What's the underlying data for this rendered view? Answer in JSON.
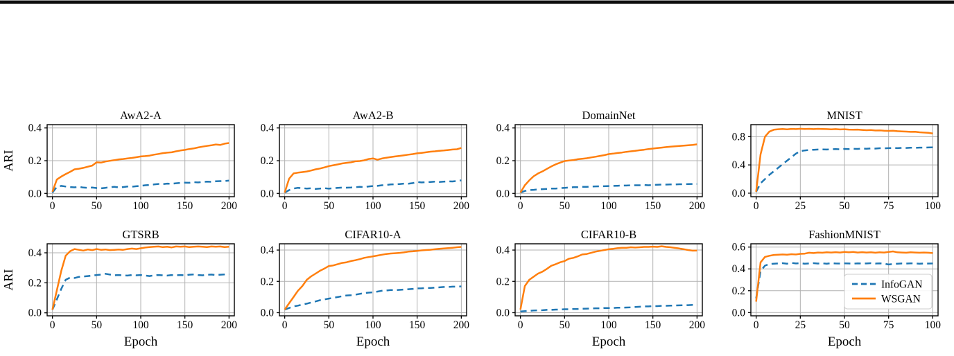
{
  "figure": {
    "rows": 2,
    "cols": 4,
    "ylabel": "ARI",
    "xlabel": "Epoch",
    "colors": {
      "infogan": "#1f77b4",
      "wsgan": "#ff7f0e",
      "grid": "#b0b0b0",
      "axis": "#000000"
    },
    "legend_labels": [
      "InfoGAN",
      "WSGAN"
    ]
  },
  "chart_data": [
    {
      "type": "line",
      "title": "AwA2-A",
      "xlabel": "",
      "ylabel": "ARI",
      "xlim": [
        -6,
        206
      ],
      "ylim": [
        -0.02,
        0.42
      ],
      "xticks": [
        0,
        50,
        100,
        150,
        200
      ],
      "yticks": [
        0.0,
        0.2,
        0.4
      ],
      "grid": true,
      "legend": false,
      "series": [
        {
          "name": "InfoGAN",
          "color": "#1f77b4",
          "dash": true,
          "x0": 0,
          "dx": 5,
          "y": [
            0.005,
            0.04,
            0.046,
            0.042,
            0.039,
            0.037,
            0.04,
            0.036,
            0.034,
            0.036,
            0.033,
            0.031,
            0.034,
            0.038,
            0.04,
            0.037,
            0.039,
            0.042,
            0.041,
            0.044,
            0.046,
            0.05,
            0.052,
            0.055,
            0.058,
            0.057,
            0.06,
            0.059,
            0.062,
            0.064,
            0.066,
            0.065,
            0.069,
            0.067,
            0.07,
            0.072,
            0.071,
            0.074,
            0.075,
            0.076,
            0.078
          ]
        },
        {
          "name": "WSGAN",
          "color": "#ff7f0e",
          "dash": false,
          "x0": 0,
          "dx": 5,
          "y": [
            0.01,
            0.085,
            0.103,
            0.118,
            0.132,
            0.147,
            0.151,
            0.156,
            0.163,
            0.17,
            0.19,
            0.188,
            0.195,
            0.199,
            0.203,
            0.208,
            0.21,
            0.214,
            0.217,
            0.221,
            0.226,
            0.228,
            0.231,
            0.237,
            0.241,
            0.246,
            0.249,
            0.251,
            0.257,
            0.262,
            0.266,
            0.271,
            0.275,
            0.281,
            0.286,
            0.29,
            0.294,
            0.299,
            0.296,
            0.304,
            0.308
          ]
        }
      ]
    },
    {
      "type": "line",
      "title": "AwA2-B",
      "xlabel": "",
      "ylabel": "",
      "xlim": [
        -6,
        206
      ],
      "ylim": [
        -0.02,
        0.42
      ],
      "xticks": [
        0,
        50,
        100,
        150,
        200
      ],
      "yticks": [
        0.0,
        0.2,
        0.4
      ],
      "grid": true,
      "legend": false,
      "series": [
        {
          "name": "InfoGAN",
          "color": "#1f77b4",
          "dash": true,
          "x0": 0,
          "dx": 5,
          "y": [
            0.005,
            0.02,
            0.03,
            0.034,
            0.032,
            0.03,
            0.031,
            0.028,
            0.03,
            0.032,
            0.029,
            0.032,
            0.034,
            0.036,
            0.035,
            0.036,
            0.038,
            0.04,
            0.039,
            0.042,
            0.045,
            0.046,
            0.05,
            0.052,
            0.055,
            0.056,
            0.057,
            0.06,
            0.059,
            0.063,
            0.07,
            0.067,
            0.069,
            0.07,
            0.072,
            0.07,
            0.072,
            0.074,
            0.073,
            0.076,
            0.08
          ]
        },
        {
          "name": "WSGAN",
          "color": "#ff7f0e",
          "dash": false,
          "x0": 0,
          "dx": 5,
          "y": [
            0.005,
            0.09,
            0.122,
            0.127,
            0.13,
            0.134,
            0.14,
            0.147,
            0.152,
            0.159,
            0.167,
            0.172,
            0.177,
            0.183,
            0.187,
            0.19,
            0.196,
            0.198,
            0.202,
            0.21,
            0.214,
            0.206,
            0.213,
            0.218,
            0.222,
            0.226,
            0.229,
            0.233,
            0.237,
            0.24,
            0.245,
            0.248,
            0.251,
            0.255,
            0.257,
            0.26,
            0.262,
            0.265,
            0.268,
            0.27,
            0.278
          ]
        }
      ]
    },
    {
      "type": "line",
      "title": "DomainNet",
      "xlabel": "",
      "ylabel": "",
      "xlim": [
        -6,
        206
      ],
      "ylim": [
        -0.02,
        0.42
      ],
      "xticks": [
        0,
        50,
        100,
        150,
        200
      ],
      "yticks": [
        0.0,
        0.2,
        0.4
      ],
      "grid": true,
      "legend": false,
      "series": [
        {
          "name": "InfoGAN",
          "color": "#1f77b4",
          "dash": true,
          "x0": 0,
          "dx": 5,
          "y": [
            0.005,
            0.015,
            0.02,
            0.022,
            0.025,
            0.026,
            0.028,
            0.03,
            0.03,
            0.032,
            0.034,
            0.036,
            0.038,
            0.038,
            0.04,
            0.04,
            0.042,
            0.043,
            0.044,
            0.044,
            0.045,
            0.046,
            0.047,
            0.048,
            0.048,
            0.05,
            0.05,
            0.05,
            0.052,
            0.05,
            0.052,
            0.053,
            0.054,
            0.054,
            0.055,
            0.055,
            0.056,
            0.056,
            0.057,
            0.058,
            0.058
          ]
        },
        {
          "name": "WSGAN",
          "color": "#ff7f0e",
          "dash": false,
          "x0": 0,
          "dx": 5,
          "y": [
            0.005,
            0.05,
            0.08,
            0.105,
            0.122,
            0.135,
            0.15,
            0.165,
            0.178,
            0.188,
            0.198,
            0.201,
            0.204,
            0.209,
            0.212,
            0.215,
            0.22,
            0.224,
            0.229,
            0.234,
            0.24,
            0.243,
            0.247,
            0.25,
            0.254,
            0.257,
            0.26,
            0.264,
            0.267,
            0.271,
            0.274,
            0.277,
            0.28,
            0.283,
            0.286,
            0.288,
            0.29,
            0.292,
            0.294,
            0.296,
            0.3
          ]
        }
      ]
    },
    {
      "type": "line",
      "title": "MNIST",
      "xlabel": "",
      "ylabel": "",
      "xlim": [
        -3,
        103
      ],
      "ylim": [
        -0.05,
        0.97
      ],
      "xticks": [
        0,
        25,
        50,
        75,
        100
      ],
      "yticks": [
        0.0,
        0.4,
        0.8
      ],
      "grid": true,
      "legend": false,
      "series": [
        {
          "name": "InfoGAN",
          "color": "#1f77b4",
          "dash": true,
          "x0": 0,
          "dx": 2.5,
          "y": [
            0.02,
            0.14,
            0.2,
            0.26,
            0.31,
            0.36,
            0.41,
            0.46,
            0.51,
            0.56,
            0.595,
            0.605,
            0.612,
            0.615,
            0.618,
            0.62,
            0.618,
            0.622,
            0.624,
            0.622,
            0.627,
            0.625,
            0.629,
            0.627,
            0.631,
            0.63,
            0.634,
            0.632,
            0.637,
            0.635,
            0.638,
            0.639,
            0.638,
            0.641,
            0.64,
            0.644,
            0.642,
            0.645,
            0.644,
            0.647,
            0.648
          ]
        },
        {
          "name": "WSGAN",
          "color": "#ff7f0e",
          "dash": false,
          "x0": 0,
          "dx": 2.5,
          "y": [
            0.02,
            0.55,
            0.8,
            0.872,
            0.898,
            0.905,
            0.908,
            0.904,
            0.91,
            0.907,
            0.912,
            0.909,
            0.911,
            0.907,
            0.911,
            0.909,
            0.907,
            0.904,
            0.907,
            0.902,
            0.905,
            0.9,
            0.898,
            0.9,
            0.895,
            0.892,
            0.894,
            0.888,
            0.89,
            0.885,
            0.882,
            0.884,
            0.878,
            0.875,
            0.872,
            0.868,
            0.869,
            0.862,
            0.858,
            0.854,
            0.845
          ]
        }
      ]
    },
    {
      "type": "line",
      "title": "GTSRB",
      "xlabel": "Epoch",
      "ylabel": "ARI",
      "xlim": [
        -6,
        206
      ],
      "ylim": [
        -0.02,
        0.46
      ],
      "xticks": [
        0,
        50,
        100,
        150,
        200
      ],
      "yticks": [
        0.0,
        0.2,
        0.4
      ],
      "grid": true,
      "legend": false,
      "series": [
        {
          "name": "InfoGAN",
          "color": "#1f77b4",
          "dash": true,
          "x0": 0,
          "dx": 5,
          "y": [
            0.02,
            0.09,
            0.16,
            0.22,
            0.235,
            0.232,
            0.24,
            0.242,
            0.245,
            0.248,
            0.252,
            0.255,
            0.26,
            0.255,
            0.25,
            0.252,
            0.25,
            0.248,
            0.252,
            0.25,
            0.252,
            0.248,
            0.245,
            0.25,
            0.252,
            0.25,
            0.248,
            0.252,
            0.25,
            0.252,
            0.25,
            0.254,
            0.256,
            0.252,
            0.25,
            0.253,
            0.255,
            0.252,
            0.254,
            0.256,
            0.258
          ]
        },
        {
          "name": "WSGAN",
          "color": "#ff7f0e",
          "dash": false,
          "x0": 0,
          "dx": 5,
          "y": [
            0.02,
            0.15,
            0.28,
            0.38,
            0.41,
            0.425,
            0.42,
            0.415,
            0.422,
            0.418,
            0.425,
            0.42,
            0.422,
            0.418,
            0.42,
            0.422,
            0.42,
            0.425,
            0.428,
            0.425,
            0.43,
            0.435,
            0.438,
            0.44,
            0.442,
            0.438,
            0.44,
            0.436,
            0.442,
            0.44,
            0.442,
            0.438,
            0.44,
            0.442,
            0.44,
            0.438,
            0.442,
            0.44,
            0.442,
            0.438,
            0.44
          ]
        }
      ]
    },
    {
      "type": "line",
      "title": "CIFAR10-A",
      "xlabel": "Epoch",
      "ylabel": "",
      "xlim": [
        -6,
        206
      ],
      "ylim": [
        -0.02,
        0.44
      ],
      "xticks": [
        0,
        50,
        100,
        150,
        200
      ],
      "yticks": [
        0.0,
        0.2,
        0.4
      ],
      "grid": true,
      "legend": false,
      "series": [
        {
          "name": "InfoGAN",
          "color": "#1f77b4",
          "dash": true,
          "x0": 0,
          "dx": 5,
          "y": [
            0.02,
            0.03,
            0.04,
            0.045,
            0.052,
            0.058,
            0.065,
            0.072,
            0.08,
            0.085,
            0.09,
            0.095,
            0.1,
            0.105,
            0.11,
            0.112,
            0.115,
            0.12,
            0.125,
            0.128,
            0.13,
            0.135,
            0.14,
            0.142,
            0.145,
            0.144,
            0.146,
            0.148,
            0.15,
            0.152,
            0.155,
            0.156,
            0.158,
            0.158,
            0.16,
            0.162,
            0.164,
            0.164,
            0.166,
            0.166,
            0.168
          ]
        },
        {
          "name": "WSGAN",
          "color": "#ff7f0e",
          "dash": false,
          "x0": 0,
          "dx": 5,
          "y": [
            0.02,
            0.06,
            0.1,
            0.14,
            0.17,
            0.21,
            0.232,
            0.25,
            0.268,
            0.282,
            0.298,
            0.302,
            0.31,
            0.318,
            0.322,
            0.33,
            0.335,
            0.342,
            0.35,
            0.355,
            0.36,
            0.365,
            0.37,
            0.375,
            0.378,
            0.38,
            0.382,
            0.385,
            0.39,
            0.392,
            0.395,
            0.398,
            0.4,
            0.402,
            0.405,
            0.408,
            0.41,
            0.412,
            0.415,
            0.418,
            0.42
          ]
        }
      ]
    },
    {
      "type": "line",
      "title": "CIFAR10-B",
      "xlabel": "Epoch",
      "ylabel": "",
      "xlim": [
        -6,
        206
      ],
      "ylim": [
        -0.02,
        0.44
      ],
      "xticks": [
        0,
        50,
        100,
        150,
        200
      ],
      "yticks": [
        0.0,
        0.2,
        0.4
      ],
      "grid": true,
      "legend": false,
      "series": [
        {
          "name": "InfoGAN",
          "color": "#1f77b4",
          "dash": true,
          "x0": 0,
          "dx": 5,
          "y": [
            0.008,
            0.01,
            0.012,
            0.014,
            0.015,
            0.016,
            0.018,
            0.018,
            0.02,
            0.02,
            0.022,
            0.022,
            0.024,
            0.024,
            0.025,
            0.026,
            0.027,
            0.028,
            0.028,
            0.03,
            0.03,
            0.03,
            0.032,
            0.032,
            0.033,
            0.034,
            0.036,
            0.038,
            0.04,
            0.04,
            0.042,
            0.042,
            0.044,
            0.044,
            0.045,
            0.046,
            0.047,
            0.048,
            0.048,
            0.05,
            0.05
          ]
        },
        {
          "name": "WSGAN",
          "color": "#ff7f0e",
          "dash": false,
          "x0": 0,
          "dx": 5,
          "y": [
            0.02,
            0.17,
            0.21,
            0.23,
            0.25,
            0.262,
            0.28,
            0.3,
            0.31,
            0.322,
            0.33,
            0.345,
            0.35,
            0.36,
            0.372,
            0.375,
            0.382,
            0.39,
            0.395,
            0.4,
            0.405,
            0.408,
            0.412,
            0.415,
            0.415,
            0.418,
            0.416,
            0.418,
            0.42,
            0.42,
            0.422,
            0.42,
            0.424,
            0.42,
            0.418,
            0.414,
            0.41,
            0.405,
            0.4,
            0.396,
            0.397
          ]
        }
      ]
    },
    {
      "type": "line",
      "title": "FashionMNIST",
      "xlabel": "Epoch",
      "ylabel": "",
      "xlim": [
        -3,
        103
      ],
      "ylim": [
        -0.03,
        0.63
      ],
      "xticks": [
        0,
        25,
        50,
        75,
        100
      ],
      "yticks": [
        0.0,
        0.2,
        0.4,
        0.6
      ],
      "grid": true,
      "legend": true,
      "series": [
        {
          "name": "InfoGAN",
          "color": "#1f77b4",
          "dash": true,
          "x0": 0,
          "dx": 2.5,
          "y": [
            0.13,
            0.38,
            0.43,
            0.445,
            0.448,
            0.45,
            0.452,
            0.448,
            0.455,
            0.45,
            0.452,
            0.448,
            0.45,
            0.452,
            0.449,
            0.451,
            0.448,
            0.452,
            0.45,
            0.449,
            0.451,
            0.45,
            0.448,
            0.451,
            0.449,
            0.45,
            0.452,
            0.449,
            0.451,
            0.448,
            0.44,
            0.445,
            0.448,
            0.45,
            0.449,
            0.451,
            0.45,
            0.448,
            0.45,
            0.449,
            0.45
          ]
        },
        {
          "name": "WSGAN",
          "color": "#ff7f0e",
          "dash": false,
          "x0": 0,
          "dx": 2.5,
          "y": [
            0.1,
            0.46,
            0.51,
            0.52,
            0.528,
            0.53,
            0.532,
            0.53,
            0.535,
            0.532,
            0.538,
            0.54,
            0.548,
            0.545,
            0.55,
            0.548,
            0.552,
            0.55,
            0.553,
            0.55,
            0.555,
            0.552,
            0.555,
            0.55,
            0.553,
            0.55,
            0.552,
            0.548,
            0.552,
            0.55,
            0.555,
            0.56,
            0.552,
            0.55,
            0.548,
            0.552,
            0.55,
            0.548,
            0.55,
            0.548,
            0.545
          ]
        }
      ]
    }
  ]
}
